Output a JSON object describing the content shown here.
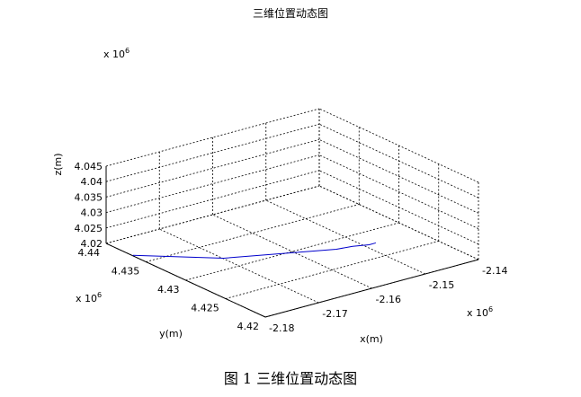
{
  "figure_caption": "图 1 三维位置动态图",
  "chart_data": {
    "type": "line",
    "title": "三维位置动态图",
    "xlabel": "x(m)",
    "ylabel": "y(m)",
    "zlabel": "z(m)",
    "x_multiplier": "x 10",
    "x_exponent": "6",
    "y_multiplier": "x 10",
    "y_exponent": "6",
    "z_multiplier": "x 10",
    "z_exponent": "6",
    "xlim": [
      -2.18,
      -2.14
    ],
    "ylim": [
      4.42,
      4.44
    ],
    "zlim": [
      4.02,
      4.045
    ],
    "x_ticks": [
      "-2.18",
      "-2.17",
      "-2.16",
      "-2.15",
      "-2.14"
    ],
    "y_ticks": [
      "4.42",
      "4.425",
      "4.43",
      "4.435",
      "4.44"
    ],
    "z_ticks": [
      "4.02",
      "4.025",
      "4.03",
      "4.035",
      "4.04",
      "4.045"
    ],
    "grid": true,
    "series": [
      {
        "x": [
          -2.1805,
          -2.1705,
          -2.1553,
          -2.1527,
          -2.1505,
          -2.1494
        ],
        "y": [
          4.4363,
          4.4316,
          4.4276,
          4.4273,
          4.4267,
          4.4266
        ],
        "z": [
          4.0208,
          4.0208,
          4.0214,
          4.0215,
          4.0217,
          4.0219
        ]
      }
    ]
  }
}
